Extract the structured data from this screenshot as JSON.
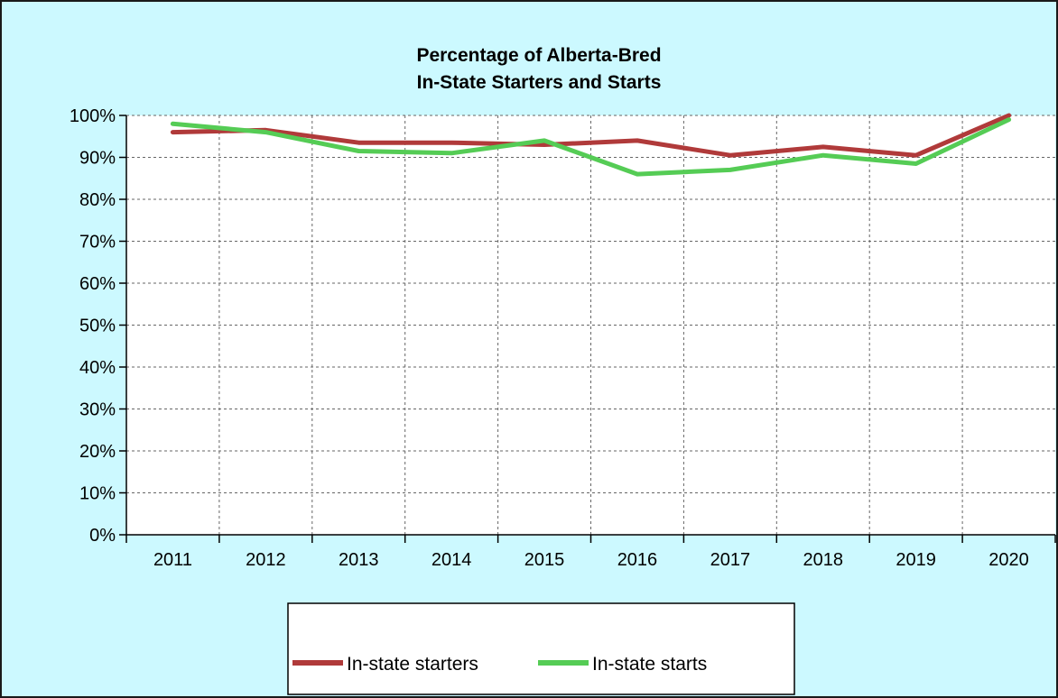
{
  "chart_data": {
    "type": "line",
    "title": "Percentage of Alberta-Bred In-State Starters and Starts",
    "title_lines": [
      "Percentage of Alberta-Bred",
      "In-State Starters and Starts"
    ],
    "x": [
      "2011",
      "2012",
      "2013",
      "2014",
      "2015",
      "2016",
      "2017",
      "2018",
      "2019",
      "2020"
    ],
    "ylim": [
      0,
      100
    ],
    "y_ticks": [
      0,
      10,
      20,
      30,
      40,
      50,
      60,
      70,
      80,
      90,
      100
    ],
    "y_tick_labels": [
      "0%",
      "10%",
      "20%",
      "30%",
      "40%",
      "50%",
      "60%",
      "70%",
      "80%",
      "90%",
      "100%"
    ],
    "grid": true,
    "legend_position": "bottom",
    "series": [
      {
        "name": "In-state starters",
        "color": "#b03a3a",
        "values": [
          96,
          96.5,
          93.5,
          93.5,
          93,
          94,
          90.5,
          92.5,
          90.5,
          100
        ]
      },
      {
        "name": "In-state starts",
        "color": "#55cc55",
        "values": [
          98,
          96,
          91.5,
          91,
          94,
          86,
          87,
          90.5,
          88.5,
          99
        ]
      }
    ],
    "background_color": "#ccf9ff",
    "plot_background_color": "#ffffff"
  }
}
